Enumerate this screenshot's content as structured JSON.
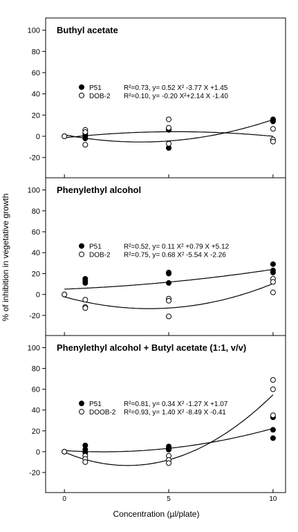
{
  "chart_data": {
    "type": "scatter",
    "ylabel": "% of inhibition in vegetative growth",
    "xlabel": "Concentration (µl/plate)",
    "x_ticks": [
      0,
      5,
      10
    ],
    "x_tick_labels": [
      "0",
      "5",
      "10"
    ],
    "y_ticks": [
      -20,
      0,
      20,
      40,
      60,
      80,
      100
    ],
    "ylim": [
      -30,
      105
    ],
    "xlim": [
      -0.9,
      10.6
    ],
    "grid": false,
    "legend_placement": "center",
    "panels": [
      {
        "title": "Buthyl acetate",
        "series": [
          {
            "name": "P51",
            "marker": "filled-circle",
            "equation": "R²=0.73, y= 0.52 X² -3.77 X +1.45",
            "coef": [
              0.52,
              -3.77,
              1.45
            ],
            "points": [
              [
                0,
                0
              ],
              [
                1,
                2
              ],
              [
                1,
                0
              ],
              [
                1,
                -2
              ],
              [
                5,
                -11
              ],
              [
                5,
                7
              ],
              [
                5,
                6
              ],
              [
                10,
                15
              ],
              [
                10,
                14
              ],
              [
                10,
                16
              ]
            ]
          },
          {
            "name": "DOB-2",
            "marker": "open-circle",
            "equation": "R²=0.10, y= -0.20 X²+2.14 X -1.40",
            "coef": [
              -0.2,
              2.14,
              -1.4
            ],
            "points": [
              [
                0,
                0
              ],
              [
                1,
                6
              ],
              [
                1,
                4
              ],
              [
                1,
                -8
              ],
              [
                5,
                16
              ],
              [
                5,
                -7
              ],
              [
                5,
                8
              ],
              [
                10,
                7
              ],
              [
                10,
                -3
              ],
              [
                10,
                -5
              ]
            ]
          }
        ]
      },
      {
        "title": "Phenylethyl alcohol",
        "series": [
          {
            "name": "P51",
            "marker": "filled-circle",
            "equation": "R²=0.52, y= 0.11 X² +0.79 X +5.12",
            "coef": [
              0.11,
              0.79,
              5.12
            ],
            "points": [
              [
                0,
                0
              ],
              [
                1,
                15
              ],
              [
                1,
                13
              ],
              [
                1,
                11
              ],
              [
                5,
                21
              ],
              [
                5,
                20
              ],
              [
                5,
                11
              ],
              [
                10,
                29
              ],
              [
                10,
                23
              ],
              [
                10,
                21
              ]
            ]
          },
          {
            "name": "DOB-2",
            "marker": "open-circle",
            "equation": "R²=0.75, y= 0.68 X² -5.54 X -2.26",
            "coef": [
              0.68,
              -5.54,
              -2.26
            ],
            "points": [
              [
                0,
                0
              ],
              [
                1,
                -5
              ],
              [
                1,
                -12
              ],
              [
                1,
                -13
              ],
              [
                5,
                -4
              ],
              [
                5,
                -6
              ],
              [
                5,
                -21
              ],
              [
                10,
                15
              ],
              [
                10,
                12
              ],
              [
                10,
                2
              ]
            ]
          }
        ]
      },
      {
        "title": "Phenylethyl alcohol + Butyl acetate (1:1, v/v)",
        "series": [
          {
            "name": "P51",
            "marker": "filled-circle",
            "equation": "R²=0.81, y= 0.34 X² -1.27 X +1.07",
            "coef": [
              0.34,
              -1.27,
              1.07
            ],
            "points": [
              [
                0,
                0
              ],
              [
                1,
                6
              ],
              [
                1,
                2
              ],
              [
                1,
                -1
              ],
              [
                5,
                5
              ],
              [
                5,
                3
              ],
              [
                5,
                2
              ],
              [
                10,
                33
              ],
              [
                10,
                21
              ],
              [
                10,
                13
              ]
            ]
          },
          {
            "name": "DOOB-2",
            "marker": "open-circle",
            "equation": "R²=0.93, y= 1.40 X² -8.49 X -0.41",
            "coef": [
              1.4,
              -8.49,
              -0.41
            ],
            "points": [
              [
                0,
                0
              ],
              [
                1,
                -4
              ],
              [
                1,
                -7
              ],
              [
                1,
                -10
              ],
              [
                5,
                -4
              ],
              [
                5,
                -8
              ],
              [
                5,
                -11
              ],
              [
                10,
                69
              ],
              [
                10,
                60
              ],
              [
                10,
                35
              ]
            ]
          }
        ]
      }
    ]
  }
}
